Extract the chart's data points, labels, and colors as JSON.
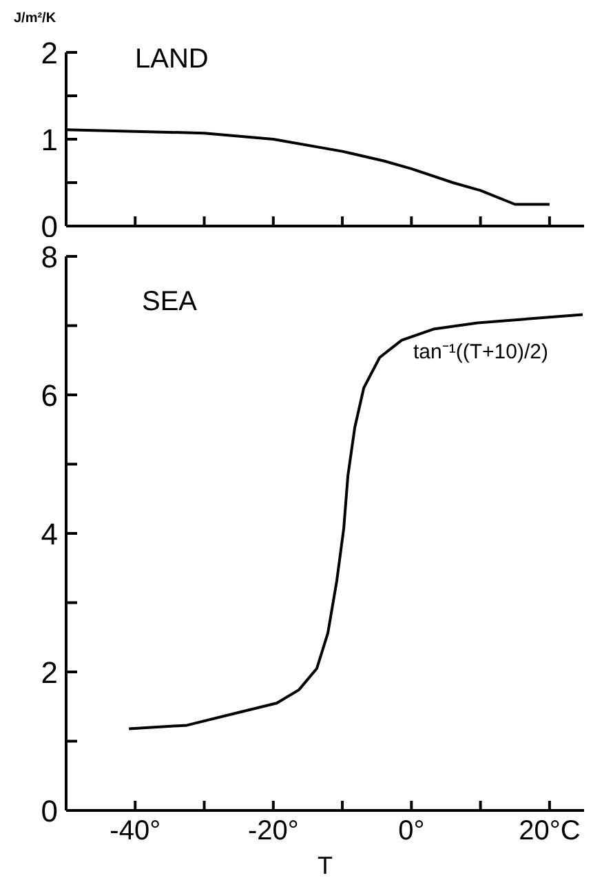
{
  "chart_data": [
    {
      "type": "line",
      "ylabel": "J/m²/K",
      "annotations": [
        "LAND"
      ],
      "tick_labels": "y",
      "marker": "none",
      "line_style": "solid",
      "xlim": [
        -50,
        25
      ],
      "xticks": [
        {
          "value": -40,
          "label": null
        },
        {
          "value": -30,
          "label": null
        },
        {
          "value": -20,
          "label": null
        },
        {
          "value": -10,
          "label": null
        },
        {
          "value": 0,
          "label": null
        },
        {
          "value": 10,
          "label": null
        },
        {
          "value": 20,
          "label": null
        }
      ],
      "ylim": [
        0,
        2
      ],
      "yticks": [
        0,
        {
          "value": 0.5,
          "label": null
        },
        1,
        {
          "value": 1.5,
          "label": null
        },
        2
      ],
      "series": [
        {
          "color": "#000000",
          "x": [
            -50,
            -30,
            -20,
            -10,
            -4,
            0,
            6,
            10,
            15,
            20
          ],
          "values": [
            1.11,
            1.07,
            1.0,
            0.86,
            0.75,
            0.66,
            0.5,
            0.41,
            0.25,
            0.25
          ]
        }
      ]
    },
    {
      "type": "line",
      "xlabel": "T",
      "annotations": [
        "SEA",
        "tan⁻¹((T+10)/2)"
      ],
      "marker": "none",
      "line_style": "solid",
      "xlim": [
        -50,
        25
      ],
      "xticks": [
        {
          "value": -40,
          "label": "-40°"
        },
        {
          "value": -30,
          "label": null
        },
        {
          "value": -20,
          "label": "-20°"
        },
        {
          "value": -10,
          "label": null
        },
        {
          "value": 0,
          "label": "0°"
        },
        {
          "value": 10,
          "label": null
        },
        {
          "value": 20,
          "label": "20°C"
        }
      ],
      "ylim": [
        0,
        8
      ],
      "yticks": [
        0,
        {
          "value": 1,
          "label": null
        },
        2,
        {
          "value": 3,
          "label": null
        },
        4,
        {
          "value": 5,
          "label": null
        },
        6,
        {
          "value": 7,
          "label": null
        },
        8
      ],
      "series": [
        {
          "color": "#000000",
          "x": [
            -40.9,
            -32.5,
            -26,
            -19.5,
            -16.3,
            -13.7,
            -12.1,
            -10.8,
            -9.8,
            -9.2,
            -8.2,
            -6.9,
            -4.6,
            -1.4,
            3.2,
            9.6,
            16,
            24.8
          ],
          "values": [
            1.18,
            1.23,
            1.39,
            1.55,
            1.74,
            2.05,
            2.56,
            3.32,
            4.07,
            4.83,
            5.53,
            6.1,
            6.54,
            6.79,
            6.95,
            7.04,
            7.09,
            7.16
          ]
        }
      ]
    }
  ]
}
